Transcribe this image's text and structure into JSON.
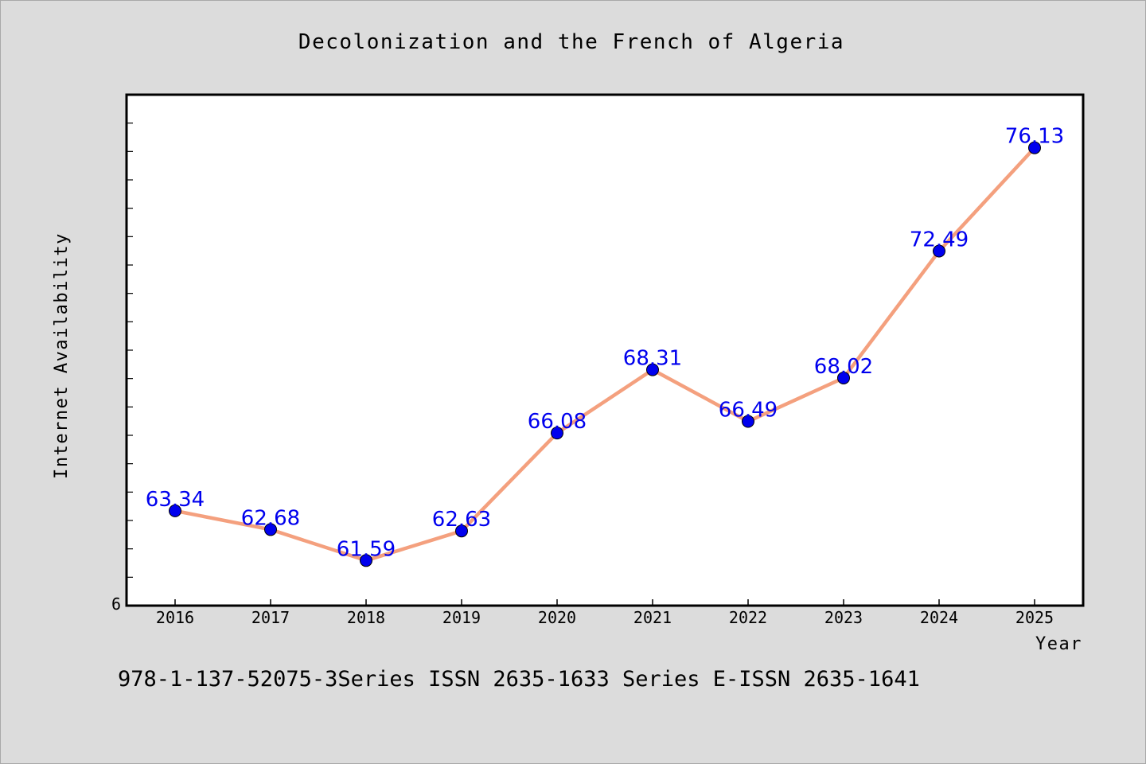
{
  "chart_data": {
    "type": "line",
    "title": "Decolonization and the French of Algeria",
    "xlabel": "Year",
    "ylabel": "Internet Availability",
    "categories": [
      "2016",
      "2017",
      "2018",
      "2019",
      "2020",
      "2021",
      "2022",
      "2023",
      "2024",
      "2025"
    ],
    "series": [
      {
        "values": [
          63.34,
          62.68,
          61.59,
          62.63,
          66.08,
          68.31,
          66.49,
          68.02,
          72.49,
          76.13
        ],
        "labels": [
          "63.34",
          "62.68",
          "61.59",
          "62.63",
          "66.08",
          "68.31",
          "66.49",
          "68.02",
          "72.49",
          "76.13"
        ]
      }
    ],
    "y_tick_labels": [
      "6"
    ],
    "ylim": [
      60,
      78
    ],
    "grid": false,
    "line_color": "#f4a07e",
    "marker_color": "#0000ee",
    "label_color": "#0000ee"
  },
  "footer": {
    "text": "978-1-137-52075-3Series ISSN 2635-1633 Series E-ISSN 2635-1641"
  }
}
